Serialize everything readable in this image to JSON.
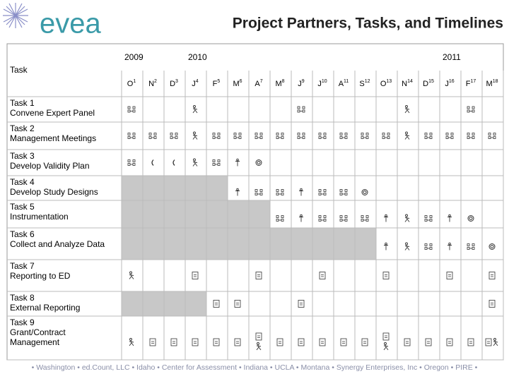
{
  "header": {
    "logo": "evea",
    "title": "Project Partners, Tasks, and Timelines"
  },
  "table": {
    "task_header": "Task",
    "years": [
      "2009",
      "2010",
      "2011"
    ],
    "months": [
      {
        "label": "O",
        "sup": "1"
      },
      {
        "label": "N",
        "sup": "2"
      },
      {
        "label": "D",
        "sup": "3"
      },
      {
        "label": "J",
        "sup": "4"
      },
      {
        "label": "F",
        "sup": "5"
      },
      {
        "label": "M",
        "sup": "6"
      },
      {
        "label": "A",
        "sup": "7"
      },
      {
        "label": "M",
        "sup": "8"
      },
      {
        "label": "J",
        "sup": "9"
      },
      {
        "label": "J",
        "sup": "10"
      },
      {
        "label": "A",
        "sup": "11"
      },
      {
        "label": "S",
        "sup": "12"
      },
      {
        "label": "O",
        "sup": "13"
      },
      {
        "label": "N",
        "sup": "14"
      },
      {
        "label": "D",
        "sup": "15"
      },
      {
        "label": "J",
        "sup": "16"
      },
      {
        "label": "F",
        "sup": "17"
      },
      {
        "label": "M",
        "sup": "18"
      }
    ],
    "tasks": [
      [
        "Task 1",
        "Convene Expert Panel"
      ],
      [
        "Task 2",
        "Management Meetings"
      ],
      [
        "Task 3",
        "Develop Validity Plan"
      ],
      [
        "Task 4",
        "Develop Study Designs"
      ],
      [
        "Task 5",
        "Instrumentation"
      ],
      [
        "Task 6",
        "Collect and Analyze Data"
      ],
      [
        "Task 7",
        "Reporting to ED"
      ],
      [
        "Task 8",
        "External Reporting"
      ],
      [
        "Task 9",
        "Grant/Contract",
        "Management"
      ]
    ]
  },
  "footer": "• Washington • ed.Count, LLC • Idaho • Center for Assessment • Indiana • UCLA • Montana • Synergy Enterprises, Inc • Oregon • PIRE •"
}
